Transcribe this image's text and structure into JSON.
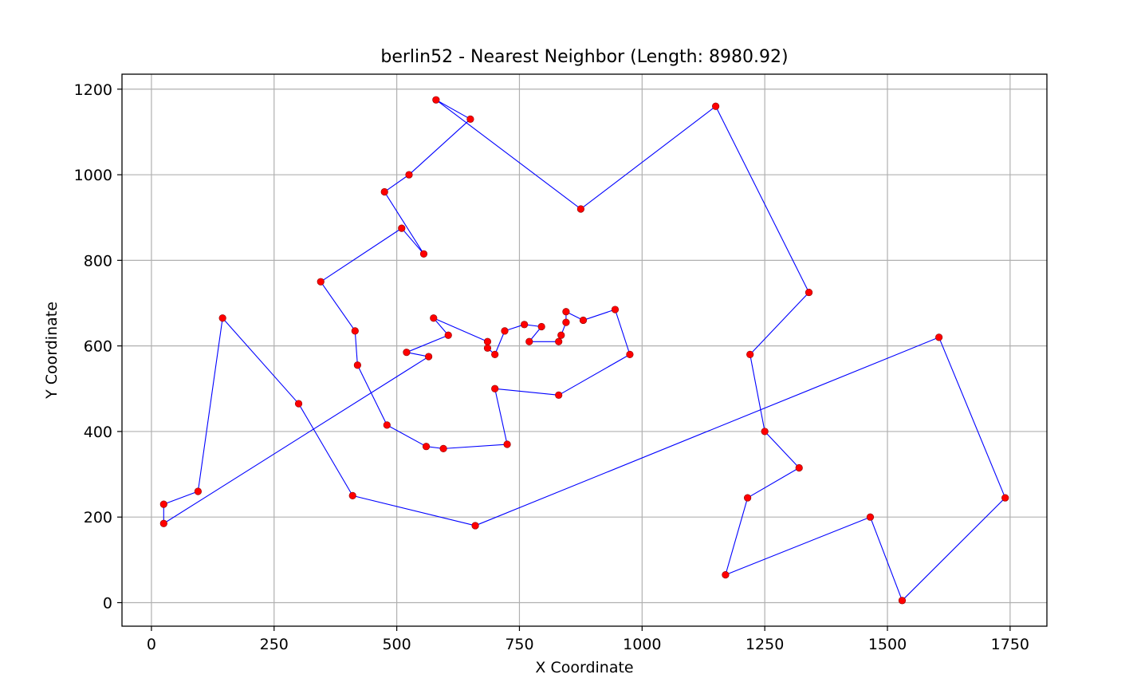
{
  "chart_data": {
    "type": "line",
    "title": "berlin52 - Nearest Neighbor (Length: 8980.92)",
    "xlabel": "X Coordinate",
    "ylabel": "Y Coordinate",
    "xlim": [
      -60,
      1825
    ],
    "ylim": [
      -55,
      1235
    ],
    "xticks": [
      0,
      250,
      500,
      750,
      1000,
      1250,
      1500,
      1750
    ],
    "yticks": [
      0,
      200,
      400,
      600,
      800,
      1000,
      1200
    ],
    "grid": true,
    "line_color": "#0000ff",
    "marker_color": "#ff0000",
    "marker_edge_color": "#8b0000",
    "series": [
      {
        "type": "line",
        "closed": true,
        "points": [
          [
            565,
            575
          ],
          [
            520,
            585
          ],
          [
            605,
            625
          ],
          [
            575,
            665
          ],
          [
            685,
            610
          ],
          [
            685,
            595
          ],
          [
            700,
            580
          ],
          [
            720,
            635
          ],
          [
            760,
            650
          ],
          [
            795,
            645
          ],
          [
            770,
            610
          ],
          [
            830,
            610
          ],
          [
            835,
            625
          ],
          [
            845,
            655
          ],
          [
            845,
            680
          ],
          [
            880,
            660
          ],
          [
            945,
            685
          ],
          [
            975,
            580
          ],
          [
            830,
            485
          ],
          [
            700,
            500
          ],
          [
            725,
            370
          ],
          [
            595,
            360
          ],
          [
            560,
            365
          ],
          [
            480,
            415
          ],
          [
            420,
            555
          ],
          [
            415,
            635
          ],
          [
            345,
            750
          ],
          [
            510,
            875
          ],
          [
            555,
            815
          ],
          [
            475,
            960
          ],
          [
            525,
            1000
          ],
          [
            650,
            1130
          ],
          [
            580,
            1175
          ],
          [
            875,
            920
          ],
          [
            1150,
            1160
          ],
          [
            1340,
            725
          ],
          [
            1220,
            580
          ],
          [
            1250,
            400
          ],
          [
            1320,
            315
          ],
          [
            1215,
            245
          ],
          [
            1170,
            65
          ],
          [
            1465,
            200
          ],
          [
            1530,
            5
          ],
          [
            1740,
            245
          ],
          [
            1605,
            620
          ],
          [
            660,
            180
          ],
          [
            410,
            250
          ],
          [
            300,
            465
          ],
          [
            145,
            665
          ],
          [
            95,
            260
          ],
          [
            25,
            230
          ],
          [
            25,
            185
          ]
        ]
      }
    ]
  }
}
